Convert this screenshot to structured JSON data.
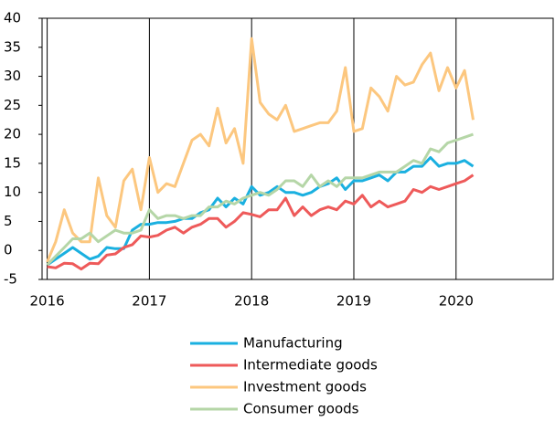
{
  "chart_data": {
    "type": "line",
    "x": [
      2016,
      2016.083,
      2016.167,
      2016.25,
      2016.333,
      2016.417,
      2016.5,
      2016.583,
      2016.667,
      2016.75,
      2016.833,
      2016.917,
      2017,
      2017.083,
      2017.167,
      2017.25,
      2017.333,
      2017.417,
      2017.5,
      2017.583,
      2017.667,
      2017.75,
      2017.833,
      2017.917,
      2018,
      2018.083,
      2018.167,
      2018.25,
      2018.333,
      2018.417,
      2018.5,
      2018.583,
      2018.667,
      2018.75,
      2018.833,
      2018.917,
      2019,
      2019.083,
      2019.167,
      2019.25,
      2019.333,
      2019.417,
      2019.5,
      2019.583,
      2019.667,
      2019.75,
      2019.833,
      2019.917,
      2020,
      2020.083,
      2020.167
    ],
    "series": [
      {
        "name": "Manufacturing",
        "color": "#1ab0e0",
        "values": [
          -2.5,
          -1.5,
          -0.5,
          0.5,
          -0.5,
          -1.5,
          -1,
          0.5,
          0.3,
          0.3,
          3.5,
          4.5,
          4.5,
          4.8,
          4.8,
          5,
          5.5,
          5.5,
          6.5,
          7,
          9,
          7.5,
          9,
          8,
          11,
          9.5,
          10,
          11,
          10,
          10,
          9.5,
          10,
          11,
          11.5,
          12.5,
          10.5,
          12,
          12,
          12.5,
          13,
          12,
          13.5,
          13.5,
          14.5,
          14.5,
          16,
          14.5,
          15,
          15,
          15.5,
          14.5
        ]
      },
      {
        "name": "Intermediate goods",
        "color": "#ee5a5a",
        "values": [
          -2.8,
          -3,
          -2.2,
          -2.3,
          -3.2,
          -2.2,
          -2.3,
          -0.8,
          -0.6,
          0.5,
          1,
          2.5,
          2.3,
          2.6,
          3.5,
          4,
          3,
          4,
          4.5,
          5.5,
          5.5,
          4,
          5,
          6.5,
          6.2,
          5.8,
          7,
          7,
          9,
          6,
          7.5,
          6,
          7,
          7.5,
          7,
          8.5,
          8,
          9.5,
          7.5,
          8.5,
          7.5,
          8,
          8.5,
          10.5,
          10,
          11,
          10.5,
          11,
          11.5,
          12,
          13
        ]
      },
      {
        "name": "Investment goods",
        "color": "#fcc77f",
        "values": [
          -2,
          1.5,
          7,
          3,
          1.5,
          1.5,
          12.5,
          6,
          4,
          12,
          14,
          7,
          16,
          10,
          11.5,
          11,
          15,
          19,
          20,
          18,
          24.5,
          18.5,
          21,
          15,
          36.5,
          25.5,
          23.5,
          22.5,
          25,
          20.5,
          21,
          21.5,
          22,
          22,
          24,
          31.5,
          20.5,
          21,
          28,
          26.5,
          24,
          30,
          28.5,
          29,
          32,
          34,
          27.5,
          31.5,
          28,
          31,
          22.5
        ]
      },
      {
        "name": "Consumer goods",
        "color": "#b5d6a7",
        "values": [
          -2.5,
          -1,
          0.5,
          2,
          2,
          3,
          1.5,
          2.5,
          3.5,
          3,
          3,
          3.5,
          7,
          5.5,
          6,
          6,
          5.5,
          6,
          6,
          7.5,
          7.5,
          8.5,
          8,
          9,
          9.5,
          10,
          9.5,
          10.5,
          12,
          12,
          11,
          13,
          11,
          12,
          11,
          12.5,
          12.5,
          12.5,
          13,
          13.5,
          13.5,
          13.5,
          14.5,
          15.5,
          15,
          17.5,
          17,
          18.5,
          19,
          19.5,
          20
        ]
      }
    ],
    "xlim": [
      2015.95,
      2020.95
    ],
    "xticks": [
      2016,
      2017,
      2018,
      2019,
      2020
    ],
    "ylim": [
      -5,
      40
    ],
    "yticks": [
      -5,
      0,
      5,
      10,
      15,
      20,
      25,
      30,
      35,
      40
    ],
    "grid": "x",
    "legend": "bottom"
  }
}
